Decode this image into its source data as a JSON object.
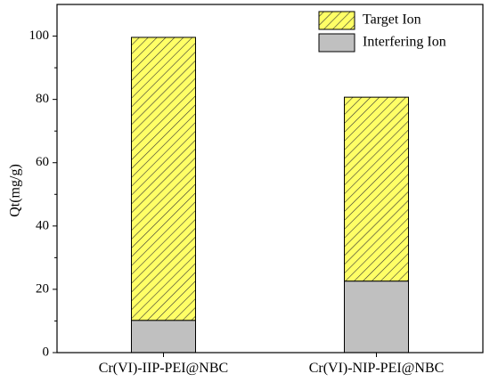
{
  "chart_data": {
    "type": "bar",
    "stacked": true,
    "categories": [
      "Cr(VI)-IIP-PEI@NBC",
      "Cr(VI)-NIP-PEI@NBC"
    ],
    "series": [
      {
        "name": "Interfering Ion",
        "values": [
          10.2,
          22.6
        ],
        "color": "#c0c0c0",
        "pattern": "solid"
      },
      {
        "name": "Target Ion",
        "values": [
          89.4,
          58.1
        ],
        "color": "#ffff66",
        "pattern": "diagonal-hatch"
      }
    ],
    "title": "",
    "xlabel": "",
    "ylabel": "Qt(mg/g)",
    "ylim": [
      0,
      110
    ],
    "yticks": [
      0,
      20,
      40,
      60,
      80,
      100
    ],
    "grid": false,
    "legend": {
      "placement": "top-right",
      "entries": [
        "Target Ion",
        "Interfering Ion"
      ]
    }
  }
}
